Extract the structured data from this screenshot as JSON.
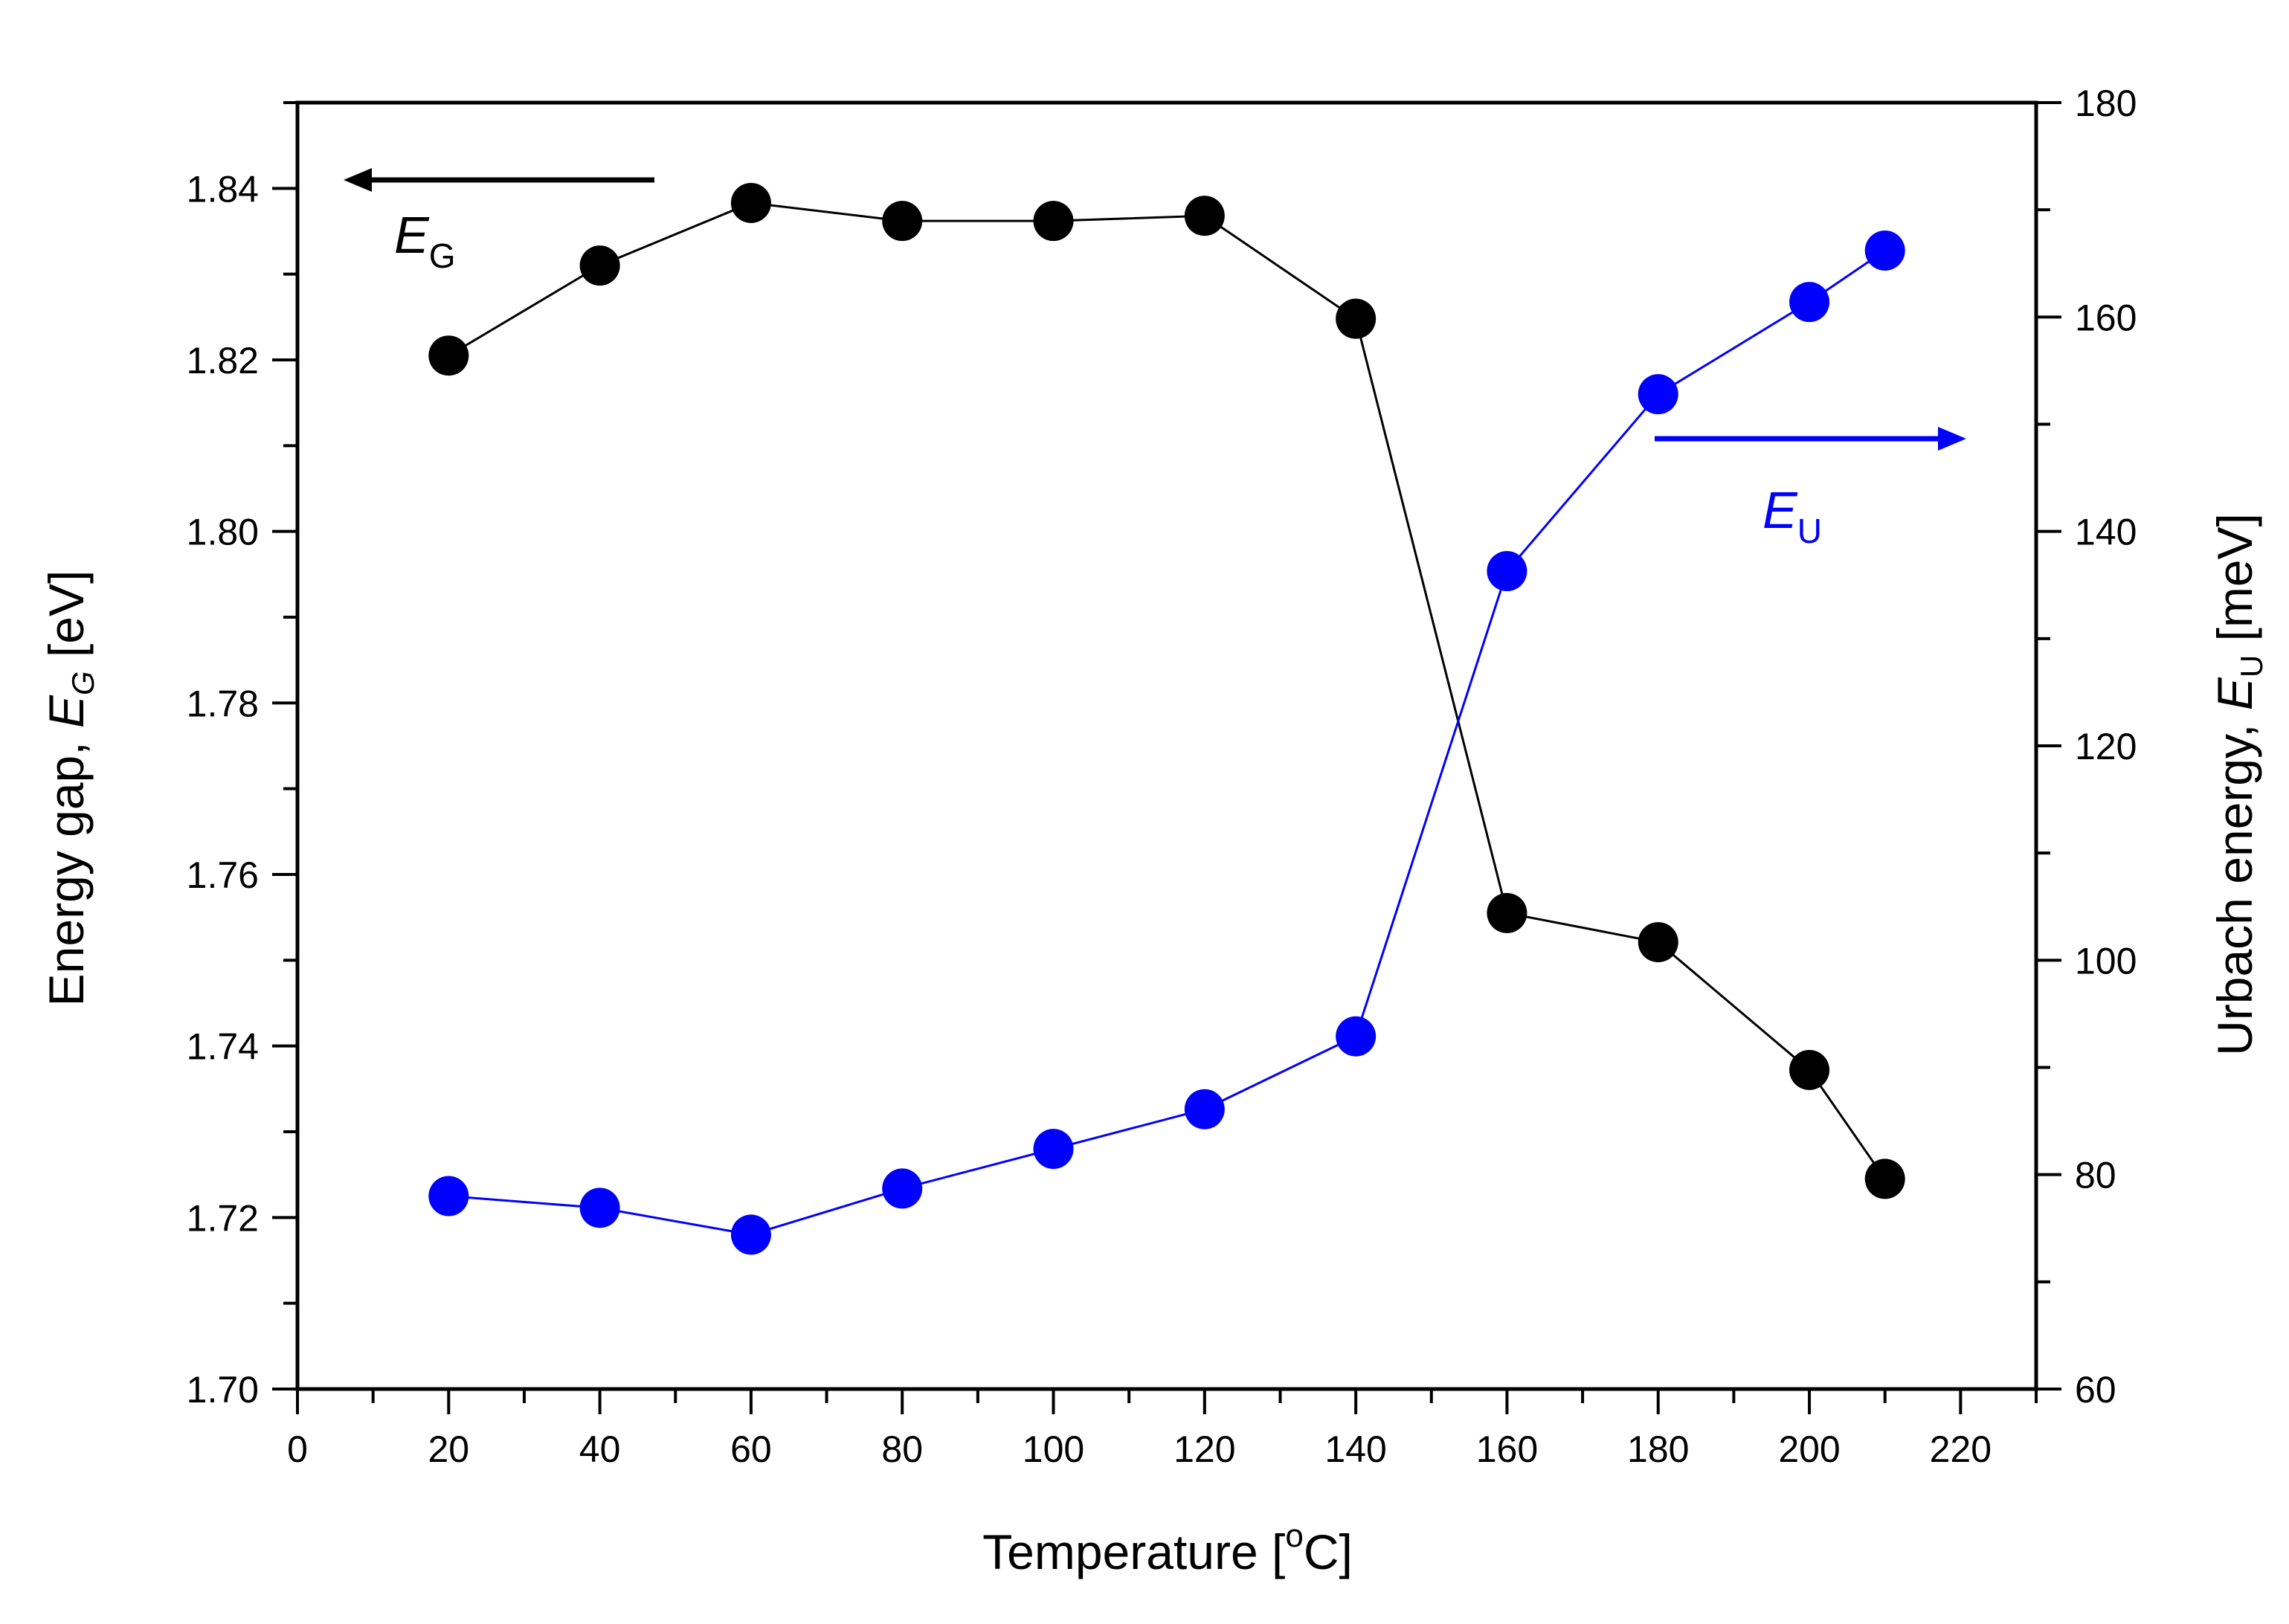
{
  "chart_data": {
    "type": "scatter",
    "title": "",
    "xlabel": {
      "main": "Temperature [",
      "sup": "o",
      "tail": "C]"
    },
    "ylabel_left": {
      "main": "Energy gap, ",
      "symbol": "E",
      "sub": "G",
      "tail": " [eV]"
    },
    "ylabel_right": {
      "main": "Urbach energy, ",
      "symbol": "E",
      "sub": "U",
      "tail": " [meV]"
    },
    "xlim": [
      0,
      230
    ],
    "ylim_left": [
      1.7,
      1.85
    ],
    "ylim_right": [
      60,
      180
    ],
    "x_ticks": [
      0,
      20,
      40,
      60,
      80,
      100,
      120,
      140,
      160,
      180,
      200,
      220
    ],
    "x_tick_labels": [
      "0",
      "20",
      "40",
      "60",
      "80",
      "100",
      "120",
      "140",
      "160",
      "180",
      "200",
      "220"
    ],
    "y_left_ticks": [
      1.7,
      1.72,
      1.74,
      1.76,
      1.78,
      1.8,
      1.82,
      1.84
    ],
    "y_left_tick_labels": [
      "1.70",
      "1.72",
      "1.74",
      "1.76",
      "1.78",
      "1.80",
      "1.82",
      "1.84"
    ],
    "y_right_ticks": [
      60,
      80,
      100,
      120,
      140,
      160,
      180
    ],
    "y_right_tick_labels": [
      "60",
      "80",
      "100",
      "120",
      "140",
      "160",
      "180"
    ],
    "grid": false,
    "series": [
      {
        "name": "E_G",
        "axis": "left",
        "color": "#000000",
        "x": [
          20,
          40,
          60,
          80,
          100,
          120,
          140,
          160,
          180,
          200,
          210
        ],
        "values": [
          1.8205,
          1.831,
          1.8383,
          1.8362,
          1.8362,
          1.8368,
          1.8248,
          1.7555,
          1.7521,
          1.7372,
          1.7245
        ]
      },
      {
        "name": "E_U",
        "axis": "right",
        "color": "#0000ff",
        "x": [
          20,
          40,
          60,
          80,
          100,
          120,
          140,
          160,
          180,
          200,
          210
        ],
        "values": [
          78.0,
          76.9,
          74.4,
          78.7,
          82.4,
          86.1,
          92.9,
          136.3,
          152.8,
          161.4,
          166.2
        ]
      }
    ],
    "annotations": [
      {
        "symbol": "E",
        "sub": "G",
        "arrow": "left",
        "color": "#000000"
      },
      {
        "symbol": "E",
        "sub": "U",
        "arrow": "right",
        "color": "#0000ff"
      }
    ]
  }
}
